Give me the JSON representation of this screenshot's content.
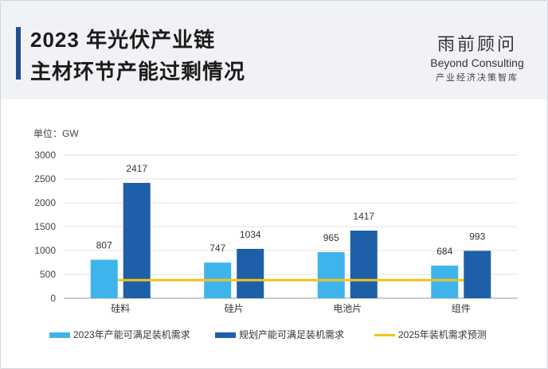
{
  "header": {
    "title_line1": "2023 年光伏产业链",
    "title_line2": "主材环节产能过剩情况",
    "logo_cn": "雨前顾问",
    "logo_en": "Beyond Consulting",
    "logo_sub": "产业经济决策智库"
  },
  "chart_data": {
    "type": "bar",
    "unit_label": "单位：GW",
    "categories": [
      "硅料",
      "硅片",
      "电池片",
      "组件"
    ],
    "series": [
      {
        "name": "2023年产能可满足装机需求",
        "values": [
          807,
          747,
          965,
          684
        ],
        "color": "#3fb4ec"
      },
      {
        "name": "规划产能可满足装机需求",
        "values": [
          2417,
          1034,
          1417,
          993
        ],
        "color": "#1d5fa8"
      }
    ],
    "reference_line": {
      "name": "2025年装机需求预测",
      "value": 380,
      "color": "#f2c316"
    },
    "ylim": [
      0,
      3000
    ],
    "yticks": [
      "0",
      "500",
      "1000",
      "1500",
      "2000",
      "2500",
      "3000"
    ],
    "legend_position": "bottom",
    "grid": true
  },
  "colors": {
    "header_bg": "#f0f2f5",
    "accent": "#1f4e8c"
  }
}
